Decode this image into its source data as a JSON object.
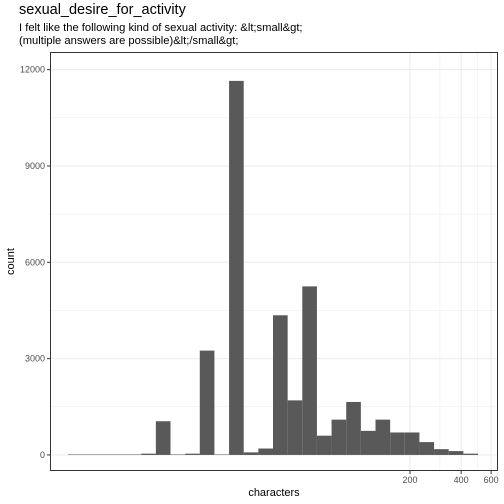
{
  "chart_data": {
    "type": "bar",
    "title": "sexual_desire_for_activity",
    "subtitle_lines": [
      "I felt like the following kind of sexual activity: &lt;small&gt;",
      "(multiple answers are possible)&lt;/small&gt;"
    ],
    "xlabel": "characters",
    "ylabel": "count",
    "x_scale": "log10",
    "x_ticks": [
      200,
      400,
      600
    ],
    "y_ticks": [
      0,
      3000,
      6000,
      9000,
      12000
    ],
    "ylim": [
      -500,
      12550
    ],
    "grid": true,
    "bin_values": [
      5,
      5,
      5,
      5,
      5,
      40,
      1050,
      5,
      40,
      3250,
      5,
      11650,
      80,
      200,
      4350,
      1700,
      5250,
      600,
      1100,
      1650,
      750,
      1100,
      700,
      700,
      400,
      180,
      120,
      40
    ],
    "bar_color": "#595959"
  }
}
